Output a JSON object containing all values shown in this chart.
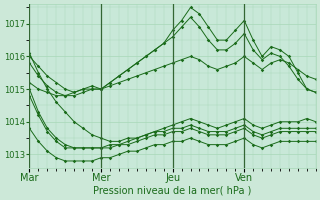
{
  "xlabel": "Pression niveau de la mer( hPa )",
  "bg_color": "#cce8d8",
  "plot_bg_color": "#c8e8d8",
  "line_color": "#1a6b1a",
  "grid_color": "#a8d8b8",
  "text_color": "#1a6b1a",
  "ylim": [
    1012.6,
    1017.6
  ],
  "yticks": [
    1013,
    1014,
    1015,
    1016,
    1017
  ],
  "day_labels": [
    "Mar",
    "Mer",
    "Jeu",
    "Ven"
  ],
  "day_ticks": [
    0,
    8,
    16,
    24
  ],
  "xlim": [
    0,
    32
  ],
  "series": [
    {
      "x": [
        0,
        1,
        2,
        3,
        4,
        5,
        6,
        7,
        8,
        9,
        10,
        11,
        12,
        13,
        14,
        15,
        16,
        17,
        18,
        19,
        20,
        21,
        22,
        23,
        24,
        25,
        26,
        27,
        28,
        29,
        30,
        31,
        32
      ],
      "y": [
        1016.0,
        1015.7,
        1015.4,
        1015.2,
        1015.0,
        1014.9,
        1015.0,
        1015.1,
        1015.0,
        1015.2,
        1015.4,
        1015.6,
        1015.8,
        1016.0,
        1016.2,
        1016.4,
        1016.8,
        1017.1,
        1017.5,
        1017.3,
        1016.9,
        1016.5,
        1016.5,
        1016.8,
        1017.1,
        1016.5,
        1016.0,
        1016.3,
        1016.2,
        1016.0,
        1015.5,
        1015.0,
        1014.9
      ]
    },
    {
      "x": [
        0,
        1,
        2,
        3,
        4,
        5,
        6,
        7,
        8,
        9,
        10,
        11,
        12,
        13,
        14,
        15,
        16,
        17,
        18,
        19,
        20,
        21,
        22,
        23,
        24,
        25,
        26,
        27,
        28,
        29,
        30,
        31,
        32
      ],
      "y": [
        1015.8,
        1015.4,
        1015.1,
        1014.9,
        1014.8,
        1014.8,
        1014.9,
        1015.0,
        1015.0,
        1015.2,
        1015.4,
        1015.6,
        1015.8,
        1016.0,
        1016.2,
        1016.4,
        1016.6,
        1016.9,
        1017.2,
        1016.9,
        1016.5,
        1016.2,
        1016.2,
        1016.4,
        1016.7,
        1016.2,
        1015.9,
        1016.1,
        1016.0,
        1015.7,
        1015.3,
        1015.0,
        1014.9
      ]
    },
    {
      "x": [
        0,
        1,
        2,
        3,
        4,
        5,
        6,
        7,
        8,
        9,
        10,
        11,
        12,
        13,
        14,
        15,
        16,
        17,
        18,
        19,
        20,
        21,
        22,
        23,
        24,
        25,
        26,
        27,
        28,
        29,
        30,
        31,
        32
      ],
      "y": [
        1015.2,
        1015.0,
        1014.9,
        1014.8,
        1014.8,
        1014.9,
        1015.0,
        1015.0,
        1015.0,
        1015.1,
        1015.2,
        1015.3,
        1015.4,
        1015.5,
        1015.6,
        1015.7,
        1015.8,
        1015.9,
        1016.0,
        1015.9,
        1015.7,
        1015.6,
        1015.7,
        1015.8,
        1016.0,
        1015.8,
        1015.6,
        1015.8,
        1015.9,
        1015.8,
        1015.6,
        1015.4,
        1015.3
      ]
    },
    {
      "x": [
        0,
        1,
        2,
        3,
        4,
        5,
        6,
        7,
        8,
        9,
        10,
        11,
        12,
        13,
        14,
        15,
        16,
        17,
        18,
        19,
        20,
        21,
        22,
        23,
        24,
        25,
        26,
        27,
        28,
        29,
        30,
        31,
        32
      ],
      "y": [
        1016.1,
        1015.5,
        1015.0,
        1014.6,
        1014.3,
        1014.0,
        1013.8,
        1013.6,
        1013.5,
        1013.4,
        1013.4,
        1013.5,
        1013.5,
        1013.6,
        1013.7,
        1013.8,
        1013.9,
        1014.0,
        1014.1,
        1014.0,
        1013.9,
        1013.8,
        1013.9,
        1014.0,
        1014.1,
        1013.9,
        1013.8,
        1013.9,
        1014.0,
        1014.0,
        1014.0,
        1014.1,
        1014.0
      ]
    },
    {
      "x": [
        0,
        1,
        2,
        3,
        4,
        5,
        6,
        7,
        8,
        9,
        10,
        11,
        12,
        13,
        14,
        15,
        16,
        17,
        18,
        19,
        20,
        21,
        22,
        23,
        24,
        25,
        26,
        27,
        28,
        29,
        30,
        31,
        32
      ],
      "y": [
        1015.0,
        1014.3,
        1013.8,
        1013.5,
        1013.3,
        1013.2,
        1013.2,
        1013.2,
        1013.2,
        1013.3,
        1013.3,
        1013.4,
        1013.5,
        1013.6,
        1013.7,
        1013.7,
        1013.8,
        1013.8,
        1013.9,
        1013.8,
        1013.7,
        1013.7,
        1013.7,
        1013.8,
        1013.9,
        1013.7,
        1013.6,
        1013.7,
        1013.8,
        1013.8,
        1013.8,
        1013.8,
        1013.8
      ]
    },
    {
      "x": [
        0,
        1,
        2,
        3,
        4,
        5,
        6,
        7,
        8,
        9,
        10,
        11,
        12,
        13,
        14,
        15,
        16,
        17,
        18,
        19,
        20,
        21,
        22,
        23,
        24,
        25,
        26,
        27,
        28,
        29,
        30,
        31,
        32
      ],
      "y": [
        1014.8,
        1014.2,
        1013.7,
        1013.4,
        1013.2,
        1013.2,
        1013.2,
        1013.2,
        1013.2,
        1013.2,
        1013.3,
        1013.3,
        1013.4,
        1013.5,
        1013.6,
        1013.6,
        1013.7,
        1013.7,
        1013.8,
        1013.7,
        1013.6,
        1013.6,
        1013.6,
        1013.7,
        1013.8,
        1013.6,
        1013.5,
        1013.6,
        1013.7,
        1013.7,
        1013.7,
        1013.7,
        1013.7
      ]
    },
    {
      "x": [
        0,
        1,
        2,
        3,
        4,
        5,
        6,
        7,
        8,
        9,
        10,
        11,
        12,
        13,
        14,
        15,
        16,
        17,
        18,
        19,
        20,
        21,
        22,
        23,
        24,
        25,
        26,
        27,
        28,
        29,
        30,
        31,
        32
      ],
      "y": [
        1013.8,
        1013.4,
        1013.1,
        1012.9,
        1012.8,
        1012.8,
        1012.8,
        1012.8,
        1012.9,
        1012.9,
        1013.0,
        1013.1,
        1013.1,
        1013.2,
        1013.3,
        1013.3,
        1013.4,
        1013.4,
        1013.5,
        1013.4,
        1013.3,
        1013.3,
        1013.3,
        1013.4,
        1013.5,
        1013.3,
        1013.2,
        1013.3,
        1013.4,
        1013.4,
        1013.4,
        1013.4,
        1013.4
      ]
    }
  ]
}
